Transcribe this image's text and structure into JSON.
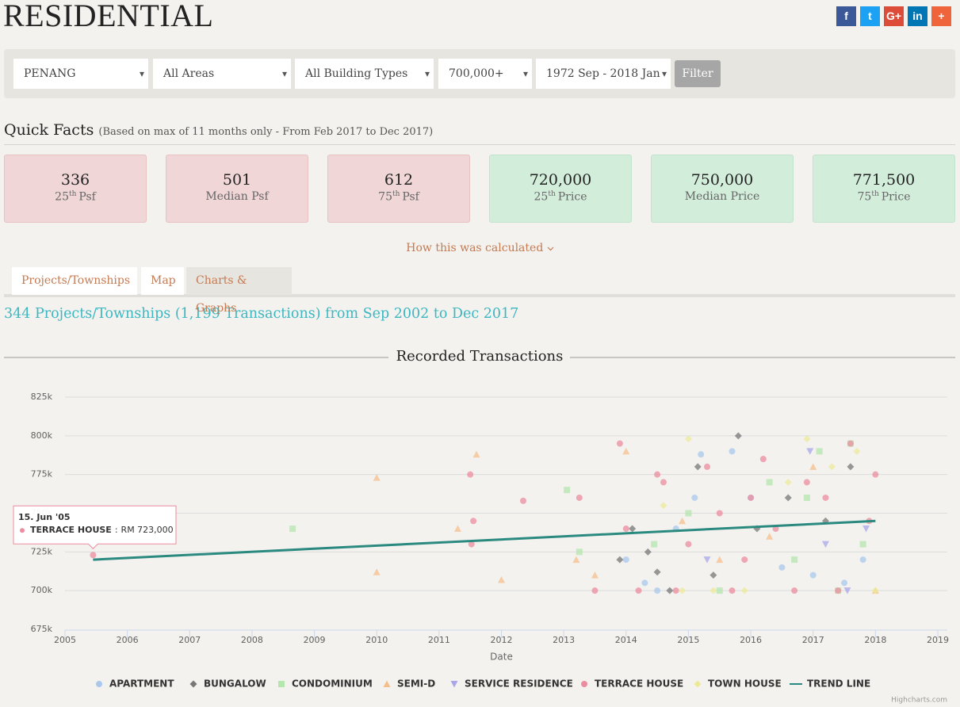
{
  "header": {
    "title": "RESIDENTIAL",
    "social": [
      "f",
      "t",
      "G+",
      "in",
      "+"
    ]
  },
  "filters": {
    "selects": [
      "PENANG",
      "All Areas",
      "All Building Types",
      "700,000+",
      "1972 Sep - 2018 Jan"
    ],
    "button": "Filter"
  },
  "quick_facts": {
    "title": "Quick Facts",
    "note": "(Based on max of 11 months only - From Feb 2017 to Dec 2017)",
    "cards": [
      {
        "value": "336",
        "ordinal": "25",
        "suffix": "th",
        "label": "Psf"
      },
      {
        "value": "501",
        "label": "Median Psf"
      },
      {
        "value": "612",
        "ordinal": "75",
        "suffix": "th",
        "label": "Psf"
      },
      {
        "value": "720,000",
        "ordinal": "25",
        "suffix": "th",
        "label": "Price"
      },
      {
        "value": "750,000",
        "label": "Median Price"
      },
      {
        "value": "771,500",
        "ordinal": "75",
        "suffix": "th",
        "label": "Price"
      }
    ]
  },
  "how": "How this was calculated",
  "tabs": [
    "Projects/Townships",
    "Map",
    "Charts & Graphs"
  ],
  "summary": "344 Projects/Townships (1,199 Transactions) from Sep 2002 to Dec 2017",
  "chart_data": {
    "type": "scatter",
    "title": "Recorded Transactions",
    "x_label": "Date",
    "xlim": [
      2005,
      2019
    ],
    "xticks": [
      2005,
      2006,
      2007,
      2008,
      2009,
      2010,
      2011,
      2012,
      2013,
      2014,
      2015,
      2016,
      2017,
      2018,
      2019
    ],
    "ylim": [
      675000,
      825000
    ],
    "yticks": [
      {
        "value": 675000,
        "label": "675k"
      },
      {
        "value": 700000,
        "label": "700k"
      },
      {
        "value": 725000,
        "label": "725k"
      },
      {
        "value": 750000,
        "label": "750k"
      },
      {
        "value": 775000,
        "label": "775k"
      },
      {
        "value": 800000,
        "label": "800k"
      },
      {
        "value": 825000,
        "label": "825k"
      }
    ],
    "grid": true,
    "series": [
      {
        "name": "APARTMENT",
        "color": "#a9c8ec",
        "marker": "circle",
        "x": [
          2014.0,
          2014.3,
          2014.5,
          2015.1,
          2015.2,
          2015.7,
          2016.0,
          2016.5,
          2017.0,
          2017.5,
          2017.8,
          2014.8
        ],
        "values": [
          720000,
          705000,
          700000,
          760000,
          788000,
          790000,
          760000,
          715000,
          710000,
          705000,
          720000,
          740000
        ]
      },
      {
        "name": "BUNGALOW",
        "color": "#777777",
        "marker": "diamond",
        "x": [
          2014.1,
          2014.35,
          2014.5,
          2014.7,
          2015.15,
          2015.4,
          2015.8,
          2016.1,
          2016.6,
          2017.2,
          2017.6,
          2013.9
        ],
        "values": [
          740000,
          725000,
          712000,
          700000,
          780000,
          710000,
          800000,
          740000,
          760000,
          745000,
          780000,
          720000
        ]
      },
      {
        "name": "CONDOMINIUM",
        "color": "#b5e6ad",
        "marker": "square",
        "x": [
          2008.65,
          2013.05,
          2013.25,
          2014.45,
          2015.0,
          2015.5,
          2016.3,
          2016.7,
          2017.1,
          2017.4,
          2017.6,
          2017.8,
          2016.9
        ],
        "values": [
          740000,
          765000,
          725000,
          730000,
          750000,
          700000,
          770000,
          720000,
          790000,
          700000,
          795000,
          730000,
          760000
        ]
      },
      {
        "name": "SEMI-D",
        "color": "#f5bf8c",
        "marker": "triangle",
        "x": [
          2010.0,
          2010.0,
          2011.3,
          2011.6,
          2012.0,
          2013.2,
          2013.5,
          2014.0,
          2014.9,
          2015.5,
          2016.3,
          2017.0,
          2018.0
        ],
        "values": [
          773000,
          712000,
          740000,
          788000,
          707000,
          720000,
          710000,
          790000,
          745000,
          720000,
          735000,
          780000,
          700000
        ]
      },
      {
        "name": "SERVICE RESIDENCE",
        "color": "#aaa5ea",
        "marker": "triangle-down",
        "x": [
          2016.95,
          2017.2,
          2017.55,
          2017.85,
          2015.3
        ],
        "values": [
          790000,
          730000,
          700000,
          740000,
          720000
        ]
      },
      {
        "name": "TERRACE HOUSE",
        "color": "#ec8c9f",
        "marker": "circle",
        "x": [
          2005.45,
          2011.5,
          2011.55,
          2011.52,
          2012.35,
          2013.25,
          2013.5,
          2013.9,
          2014.0,
          2014.2,
          2014.5,
          2014.6,
          2014.8,
          2015.0,
          2015.3,
          2015.5,
          2015.7,
          2016.0,
          2016.2,
          2016.4,
          2016.7,
          2016.9,
          2017.2,
          2017.4,
          2017.6,
          2017.9,
          2018.0,
          2015.9
        ],
        "values": [
          723000,
          775000,
          745000,
          730000,
          758000,
          760000,
          700000,
          795000,
          740000,
          700000,
          775000,
          770000,
          700000,
          730000,
          780000,
          750000,
          700000,
          760000,
          785000,
          740000,
          700000,
          770000,
          760000,
          700000,
          795000,
          745000,
          775000,
          720000
        ]
      },
      {
        "name": "TOWN HOUSE",
        "color": "#ecea98",
        "marker": "diamond",
        "x": [
          2014.6,
          2015.0,
          2015.4,
          2015.9,
          2016.6,
          2016.9,
          2017.3,
          2017.7,
          2018.0,
          2014.9
        ],
        "values": [
          755000,
          798000,
          700000,
          700000,
          770000,
          798000,
          780000,
          790000,
          700000,
          700000
        ]
      },
      {
        "name": "TREND LINE",
        "color": "#2b8a80",
        "marker": "line",
        "x": [
          2005.45,
          2018.0
        ],
        "values": [
          720000,
          745000
        ]
      }
    ],
    "tooltip": {
      "date": "15. Jun '05",
      "separator": ":",
      "value_label": "RM 723,000"
    },
    "credit": "Highcharts.com"
  }
}
